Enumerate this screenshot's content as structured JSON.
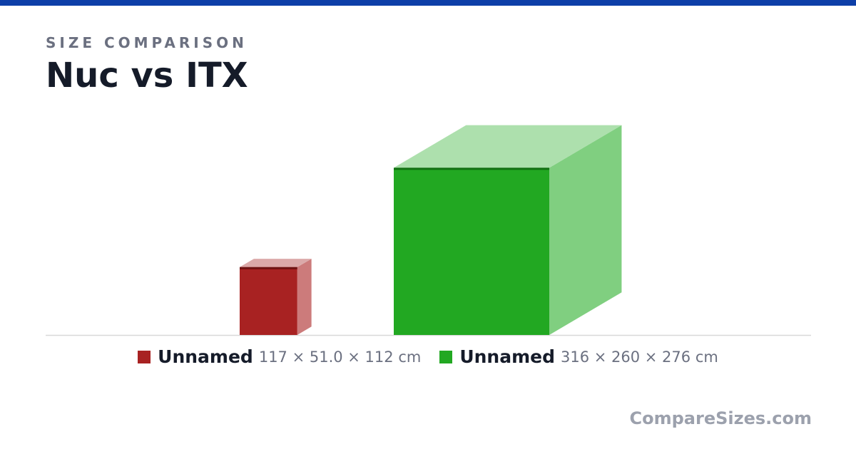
{
  "header": {
    "eyebrow": "SIZE COMPARISON",
    "title": "Nuc vs ITX"
  },
  "items": [
    {
      "name": "Unnamed",
      "dimensions": "117 × 51.0 × 112 cm",
      "width": 117,
      "depth": 51,
      "height": 112,
      "color": "#a82222",
      "top_color": "#dba9a9",
      "side_color": "#cc7b7b",
      "edge_color": "#6e1212"
    },
    {
      "name": "Unnamed",
      "dimensions": "316 × 260 × 276 cm",
      "width": 316,
      "depth": 260,
      "height": 276,
      "color": "#22a822",
      "top_color": "#ade0ad",
      "side_color": "#80cf80",
      "edge_color": "#137013"
    }
  ],
  "footer": {
    "site": "CompareSizes.com"
  }
}
